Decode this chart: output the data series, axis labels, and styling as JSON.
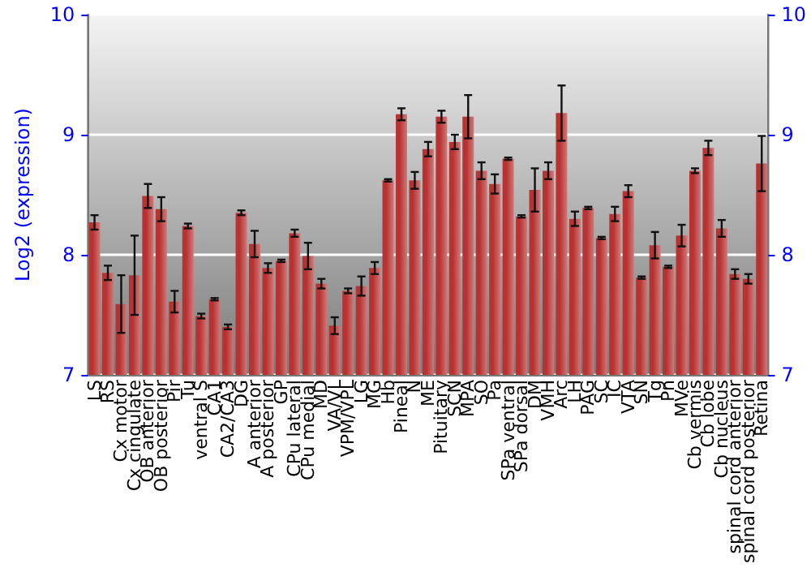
{
  "chart_data": {
    "type": "bar",
    "ylabel": "Log2 (expression)",
    "categories": [
      "LS",
      "RS",
      "Cx motor",
      "Cx cingulate",
      "OB anterior",
      "OB posterior",
      "Pir",
      "Tu",
      "ventral S",
      "CA1",
      "CA2/CA3",
      "DG",
      "A anterior",
      "A posterior",
      "GP",
      "CPu lateral",
      "CPu medial",
      "MD",
      "VA/VL",
      "VPM/VPL",
      "LG",
      "MG",
      "Hb",
      "Pineal",
      "N",
      "ME",
      "Pituitary",
      "SCN",
      "MPA",
      "SO",
      "Pa",
      "SPa ventral",
      "SPa dorsal",
      "DM",
      "VMH",
      "Arc",
      "LH",
      "PAG",
      "SC",
      "IC",
      "VTA",
      "SN",
      "Tg",
      "Pn",
      "MVe",
      "Cb vermis",
      "Cb lobe",
      "Cb nucleus",
      "spinal cord anterior",
      "spinal cord posterior",
      "Retina"
    ],
    "values": [
      8.27,
      7.85,
      7.59,
      7.83,
      8.49,
      8.38,
      7.61,
      8.24,
      7.49,
      7.63,
      7.4,
      8.35,
      8.09,
      7.89,
      7.95,
      8.18,
      7.99,
      7.76,
      7.41,
      7.7,
      7.74,
      7.89,
      8.62,
      9.17,
      8.62,
      8.88,
      9.15,
      8.94,
      9.15,
      8.7,
      8.59,
      8.8,
      8.32,
      8.54,
      8.7,
      9.18,
      8.3,
      8.39,
      8.14,
      8.34,
      8.53,
      7.81,
      8.08,
      7.9,
      8.16,
      8.7,
      8.89,
      8.22,
      7.84,
      7.8,
      8.76
    ],
    "errors": [
      0.06,
      0.06,
      0.24,
      0.33,
      0.1,
      0.1,
      0.09,
      0.02,
      0.02,
      0.01,
      0.02,
      0.02,
      0.11,
      0.04,
      0.01,
      0.03,
      0.11,
      0.04,
      0.07,
      0.02,
      0.08,
      0.05,
      0.01,
      0.05,
      0.07,
      0.06,
      0.05,
      0.06,
      0.18,
      0.07,
      0.08,
      0.01,
      0.01,
      0.18,
      0.07,
      0.23,
      0.06,
      0.01,
      0.01,
      0.06,
      0.05,
      0.01,
      0.11,
      0.01,
      0.09,
      0.02,
      0.06,
      0.07,
      0.04,
      0.04,
      0.23
    ],
    "color": "#b83232",
    "ylim": [
      7,
      10
    ],
    "yticks": [
      7,
      8,
      9,
      10
    ],
    "y2lim": [
      7,
      10
    ],
    "y2ticks": [
      7,
      8,
      9,
      10
    ],
    "grid": "y"
  }
}
